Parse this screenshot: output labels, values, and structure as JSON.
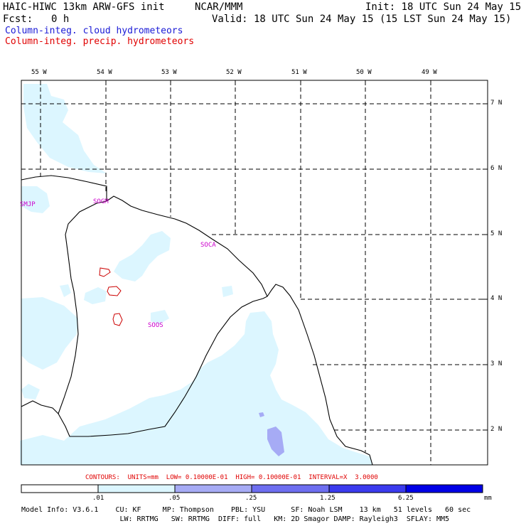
{
  "header": {
    "title": "HAIC-HIWC 13km ARW-GFS init",
    "center": "NCAR/MMM",
    "init": "Init: 18 UTC Sun 24 May 15",
    "fcst_label": "Fcst:",
    "fcst_value": "0 h",
    "valid": "Valid: 18 UTC Sun 24 May 15 (15 LST Sun 24 May 15)"
  },
  "fields": {
    "cloud_label": "Column-integ. cloud hydrometeors",
    "cloud_color": "#1a1ad6",
    "precip_label": "Column-integ. precip. hydrometeors",
    "precip_color": "#e00000"
  },
  "map": {
    "lon_labels": [
      "55 W",
      "54 W",
      "53 W",
      "52 W",
      "51 W",
      "50 W",
      "49 W"
    ],
    "lat_labels": [
      "7 N",
      "6 N",
      "5 N",
      "4 N",
      "3 N",
      "2 N"
    ],
    "stations": [
      "SMJP",
      "SOGM",
      "SOCA",
      "SOOS"
    ],
    "station_color": "#cc00cc",
    "coast_color": "#000000"
  },
  "contours_note": "CONTOURS:  UNITS=mm  LOW= 0.10000E-01  HIGH= 0.10000E-01  INTERVAL=X  3.0000",
  "colorbar": {
    "labels": [
      ".01",
      ".05",
      ".25",
      "1.25",
      "6.25"
    ],
    "unit": "mm",
    "colors": [
      "#ffffff",
      "#dcf6ff",
      "#a6abf5",
      "#6d6ef0",
      "#0000e6"
    ]
  },
  "model_info": {
    "line1": "Model Info: V3.6.1    CU: KF     MP: Thompson    PBL: YSU      SF: Noah LSM    13 km   51 levels   60 sec",
    "line2": "                       LW: RRTMG   SW: RRTMG  DIFF: full   KM: 2D Smagor DAMP: Rayleigh3  SFLAY: MM5"
  }
}
